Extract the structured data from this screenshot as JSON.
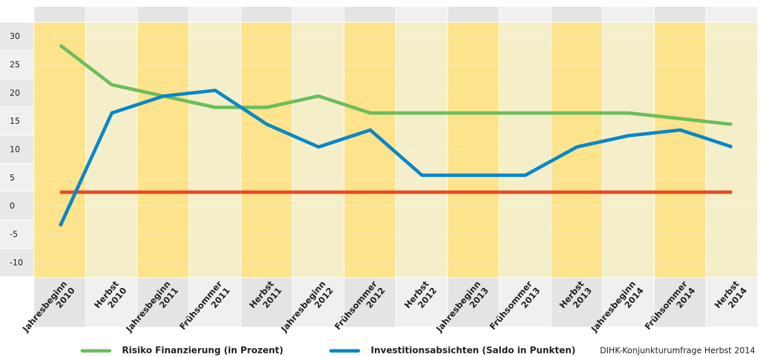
{
  "chart_data": {
    "type": "line",
    "categories": [
      [
        "Jahresbeginn",
        "2010"
      ],
      [
        "Herbst",
        "2010"
      ],
      [
        "Jahresbeginn",
        "2011"
      ],
      [
        "Frühsommer",
        "2011"
      ],
      [
        "Herbst",
        "2011"
      ],
      [
        "Jahresbeginn",
        "2012"
      ],
      [
        "Frühsommer",
        "2012"
      ],
      [
        "Herbst",
        "2012"
      ],
      [
        "Jahresbeginn",
        "2013"
      ],
      [
        "Frühsommer",
        "2013"
      ],
      [
        "Herbst",
        "2013"
      ],
      [
        "Jahresbeginn",
        "2014"
      ],
      [
        "Frühsommer",
        "2014"
      ],
      [
        "Herbst",
        "2014"
      ]
    ],
    "series": [
      {
        "name": "Risiko Finanzierung (in Prozent)",
        "color": "#6cbd5c",
        "values": [
          28.5,
          21.5,
          19.5,
          17.5,
          17.5,
          19.5,
          16.5,
          16.5,
          16.5,
          16.5,
          16.5,
          16.5,
          15.5,
          14.5
        ]
      },
      {
        "name": "Investitionsabsichten (Saldo in Punkten)",
        "color": "#0a87c8",
        "values": [
          -3.5,
          16.5,
          19.5,
          20.5,
          14.5,
          10.5,
          13.5,
          5.5,
          5.5,
          5.5,
          10.5,
          12.5,
          13.5,
          10.5
        ]
      },
      {
        "color": "#e84a24",
        "values": [
          2.5,
          2.5,
          2.5,
          2.5,
          2.5,
          2.5,
          2.5,
          2.5,
          2.5,
          2.5,
          2.5,
          2.5,
          2.5,
          2.5
        ]
      }
    ],
    "ylim": [
      -12.5,
      32.5
    ],
    "yticks": [
      30,
      25,
      20,
      15,
      10,
      5,
      0,
      -5,
      -10
    ],
    "grid": true,
    "source": "DIHK-Konjunkturumfrage Herbst 2014"
  }
}
